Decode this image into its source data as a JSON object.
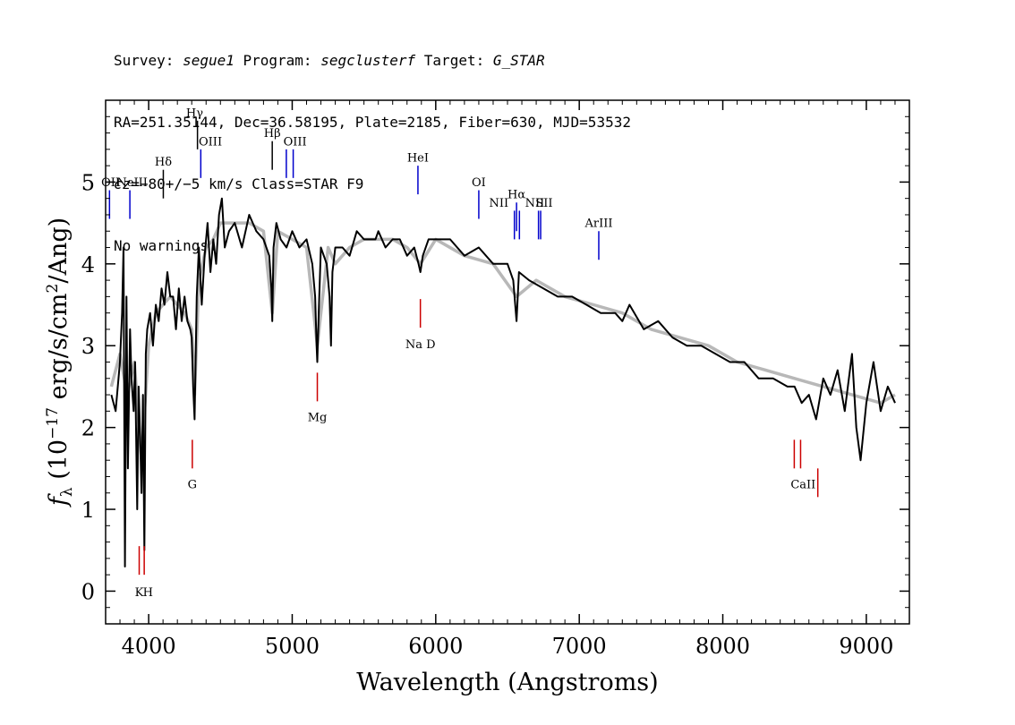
{
  "header": {
    "survey_label": "Survey: ",
    "survey": "segue1",
    "program_label": " Program: ",
    "program": "segclusterf",
    "target_label": " Target: ",
    "target": "G_STAR",
    "line2": "RA=251.35144, Dec=36.58195, Plate=2185, Fiber=630, MJD=53532",
    "cz_label": "cz",
    "cz_value": "=−80+/−5",
    "cz_rest": " km/s Class=STAR F9",
    "warnings": "No warnings."
  },
  "chart_data": {
    "type": "line",
    "title": "",
    "xlabel": "Wavelength (Angstroms)",
    "ylabel_prefix": "f",
    "ylabel_sub": "λ",
    "ylabel_main": " (10",
    "ylabel_exp": "−17",
    "ylabel_mid": " erg/s/cm",
    "ylabel_sq": "2",
    "ylabel_end": "/Ang)",
    "xlim": [
      3700,
      9300
    ],
    "ylim": [
      -0.4,
      6.0
    ],
    "xticks": [
      4000,
      5000,
      6000,
      7000,
      8000,
      9000
    ],
    "xtick_labels": [
      "4000",
      "5000",
      "6000",
      "7000",
      "8000",
      "9000"
    ],
    "yticks": [
      0,
      1,
      2,
      3,
      4,
      5
    ],
    "ytick_labels": [
      "0",
      "1",
      "2",
      "3",
      "4",
      "5"
    ],
    "series": [
      {
        "role": "flux",
        "color": "#000000",
        "x": [
          3740,
          3770,
          3800,
          3815,
          3825,
          3835,
          3845,
          3855,
          3870,
          3880,
          3895,
          3905,
          3920,
          3930,
          3940,
          3950,
          3960,
          3970,
          3980,
          3990,
          4010,
          4030,
          4050,
          4070,
          4090,
          4110,
          4130,
          4150,
          4170,
          4190,
          4210,
          4230,
          4250,
          4270,
          4290,
          4300,
          4310,
          4320,
          4335,
          4350,
          4370,
          4390,
          4410,
          4430,
          4450,
          4470,
          4490,
          4510,
          4530,
          4560,
          4600,
          4650,
          4700,
          4750,
          4800,
          4840,
          4855,
          4861,
          4870,
          4890,
          4920,
          4960,
          5000,
          5050,
          5100,
          5140,
          5160,
          5170,
          5175,
          5185,
          5200,
          5240,
          5260,
          5270,
          5280,
          5300,
          5350,
          5400,
          5450,
          5500,
          5550,
          5580,
          5600,
          5650,
          5700,
          5750,
          5800,
          5850,
          5880,
          5893,
          5910,
          5950,
          6000,
          6100,
          6200,
          6300,
          6400,
          6500,
          6540,
          6563,
          6580,
          6650,
          6750,
          6850,
          6950,
          7050,
          7150,
          7250,
          7300,
          7350,
          7450,
          7550,
          7650,
          7750,
          7850,
          7950,
          8050,
          8150,
          8250,
          8350,
          8450,
          8500,
          8550,
          8600,
          8650,
          8700,
          8750,
          8800,
          8850,
          8900,
          8930,
          8960,
          9000,
          9050,
          9100,
          9150,
          9200
        ],
        "y": [
          2.4,
          2.2,
          2.8,
          3.4,
          4.2,
          0.3,
          3.6,
          1.5,
          3.2,
          2.6,
          2.2,
          2.8,
          1.0,
          2.5,
          1.9,
          1.2,
          2.4,
          0.5,
          2.9,
          3.2,
          3.4,
          3.0,
          3.5,
          3.3,
          3.7,
          3.5,
          3.9,
          3.6,
          3.6,
          3.2,
          3.7,
          3.3,
          3.6,
          3.3,
          3.2,
          3.1,
          2.5,
          2.1,
          3.6,
          4.2,
          3.5,
          4.1,
          4.5,
          3.9,
          4.3,
          4.0,
          4.6,
          4.8,
          4.2,
          4.4,
          4.5,
          4.2,
          4.6,
          4.4,
          4.3,
          4.1,
          3.7,
          3.3,
          4.2,
          4.5,
          4.3,
          4.2,
          4.4,
          4.2,
          4.3,
          4.0,
          3.6,
          3.0,
          2.8,
          3.4,
          4.2,
          4.0,
          3.6,
          3.0,
          3.9,
          4.2,
          4.2,
          4.1,
          4.4,
          4.3,
          4.3,
          4.3,
          4.4,
          4.2,
          4.3,
          4.3,
          4.1,
          4.2,
          4.0,
          3.9,
          4.1,
          4.3,
          4.3,
          4.3,
          4.1,
          4.2,
          4.0,
          4.0,
          3.8,
          3.3,
          3.9,
          3.8,
          3.7,
          3.6,
          3.6,
          3.5,
          3.4,
          3.4,
          3.3,
          3.5,
          3.2,
          3.3,
          3.1,
          3.0,
          3.0,
          2.9,
          2.8,
          2.8,
          2.6,
          2.6,
          2.5,
          2.5,
          2.3,
          2.4,
          2.1,
          2.6,
          2.4,
          2.7,
          2.2,
          2.9,
          2.0,
          1.6,
          2.3,
          2.8,
          2.2,
          2.5,
          2.3
        ]
      },
      {
        "role": "model",
        "color": "#b8b8b8",
        "x": [
          3740,
          3800,
          3850,
          3900,
          3950,
          4000,
          4050,
          4100,
          4150,
          4200,
          4250,
          4300,
          4320,
          4350,
          4400,
          4450,
          4500,
          4600,
          4700,
          4800,
          4861,
          4900,
          5000,
          5100,
          5175,
          5250,
          5300,
          5400,
          5500,
          5600,
          5700,
          5800,
          5893,
          6000,
          6200,
          6400,
          6563,
          6700,
          6900,
          7100,
          7300,
          7500,
          7700,
          7900,
          8100,
          8300,
          8500,
          8700,
          8900,
          9100,
          9200
        ],
        "y": [
          2.5,
          2.9,
          2.4,
          2.8,
          1.6,
          3.0,
          3.4,
          3.5,
          3.6,
          3.5,
          3.4,
          3.2,
          2.4,
          3.8,
          4.2,
          4.3,
          4.5,
          4.5,
          4.5,
          4.4,
          3.4,
          4.4,
          4.3,
          4.2,
          3.0,
          4.2,
          4.0,
          4.2,
          4.3,
          4.3,
          4.3,
          4.2,
          4.0,
          4.3,
          4.1,
          4.0,
          3.6,
          3.8,
          3.6,
          3.5,
          3.4,
          3.2,
          3.1,
          3.0,
          2.8,
          2.7,
          2.6,
          2.5,
          2.4,
          2.3,
          2.4
        ]
      }
    ],
    "annotations": [
      {
        "label": "K",
        "wl": 3934,
        "color": "#cc0000",
        "y0": 0.2,
        "y1": 0.55,
        "ly": -0.06,
        "lwl": 3934
      },
      {
        "label": "H",
        "wl": 3969,
        "color": "#cc0000",
        "y0": 0.2,
        "y1": 0.55,
        "ly": -0.06,
        "lwl": 3995
      },
      {
        "label": "G",
        "wl": 4304,
        "color": "#cc0000",
        "y0": 1.5,
        "y1": 1.85,
        "ly": 1.26,
        "lwl": 4304
      },
      {
        "label": "Mg",
        "wl": 5175,
        "color": "#cc0000",
        "y0": 2.32,
        "y1": 2.67,
        "ly": 2.08,
        "lwl": 5175
      },
      {
        "label": "Na D",
        "wl": 5893,
        "color": "#cc0000",
        "y0": 3.22,
        "y1": 3.57,
        "ly": 2.97,
        "lwl": 5893
      },
      {
        "label": "CaII",
        "wl": 8498,
        "color": "#cc0000",
        "y0": 1.5,
        "y1": 1.85,
        "ly": 1.26,
        "lwl": 8560
      },
      {
        "label": "",
        "wl": 8542,
        "color": "#cc0000",
        "y0": 1.5,
        "y1": 1.85,
        "ly": null,
        "lwl": 8542
      },
      {
        "label": "",
        "wl": 8662,
        "color": "#cc0000",
        "y0": 1.15,
        "y1": 1.5,
        "ly": null,
        "lwl": 8662
      },
      {
        "label": "OII",
        "wl": 3727,
        "color": "#0000cc",
        "y0": 4.55,
        "y1": 4.9,
        "ly": 4.95,
        "lwl": 3735
      },
      {
        "label": "NeIII",
        "wl": 3869,
        "color": "#0000cc",
        "y0": 4.55,
        "y1": 4.9,
        "ly": 4.95,
        "lwl": 3885
      },
      {
        "label": "Hδ",
        "wl": 4102,
        "color": "#000000",
        "y0": 4.8,
        "y1": 5.15,
        "ly": 5.2,
        "lwl": 4102
      },
      {
        "label": "Hγ",
        "wl": 4340,
        "color": "#000000",
        "y0": 5.4,
        "y1": 5.75,
        "ly": 5.8,
        "lwl": 4320
      },
      {
        "label": "OIII",
        "wl": 4363,
        "color": "#0000cc",
        "y0": 5.05,
        "y1": 5.4,
        "ly": 5.45,
        "lwl": 4430
      },
      {
        "label": "Hβ",
        "wl": 4861,
        "color": "#000000",
        "y0": 5.15,
        "y1": 5.5,
        "ly": 5.55,
        "lwl": 4861
      },
      {
        "label": "",
        "wl": 4959,
        "color": "#0000cc",
        "y0": 5.05,
        "y1": 5.4,
        "ly": null,
        "lwl": 4959
      },
      {
        "label": "OIII",
        "wl": 5007,
        "color": "#0000cc",
        "y0": 5.05,
        "y1": 5.4,
        "ly": 5.45,
        "lwl": 5020
      },
      {
        "label": "HeI",
        "wl": 5876,
        "color": "#0000cc",
        "y0": 4.85,
        "y1": 5.2,
        "ly": 5.25,
        "lwl": 5876
      },
      {
        "label": "OI",
        "wl": 6300,
        "color": "#0000cc",
        "y0": 4.55,
        "y1": 4.9,
        "ly": 4.95,
        "lwl": 6300
      },
      {
        "label": "NII",
        "wl": 6548,
        "color": "#0000cc",
        "y0": 4.3,
        "y1": 4.65,
        "ly": 4.7,
        "lwl": 6440
      },
      {
        "label": "Hα",
        "wl": 6563,
        "color": "#0000cc",
        "y0": 4.4,
        "y1": 4.75,
        "ly": 4.8,
        "lwl": 6563
      },
      {
        "label": "",
        "wl": 6583,
        "color": "#0000cc",
        "y0": 4.3,
        "y1": 4.65,
        "ly": null,
        "lwl": 6583
      },
      {
        "label": "NII",
        "wl": 6716,
        "color": "#0000cc",
        "y0": 4.3,
        "y1": 4.65,
        "ly": 4.7,
        "lwl": 6690
      },
      {
        "label": "SII",
        "wl": 6731,
        "color": "#0000cc",
        "y0": 4.3,
        "y1": 4.65,
        "ly": 4.7,
        "lwl": 6755
      },
      {
        "label": "ArIII",
        "wl": 7136,
        "color": "#0000cc",
        "y0": 4.05,
        "y1": 4.4,
        "ly": 4.45,
        "lwl": 7136
      }
    ]
  }
}
